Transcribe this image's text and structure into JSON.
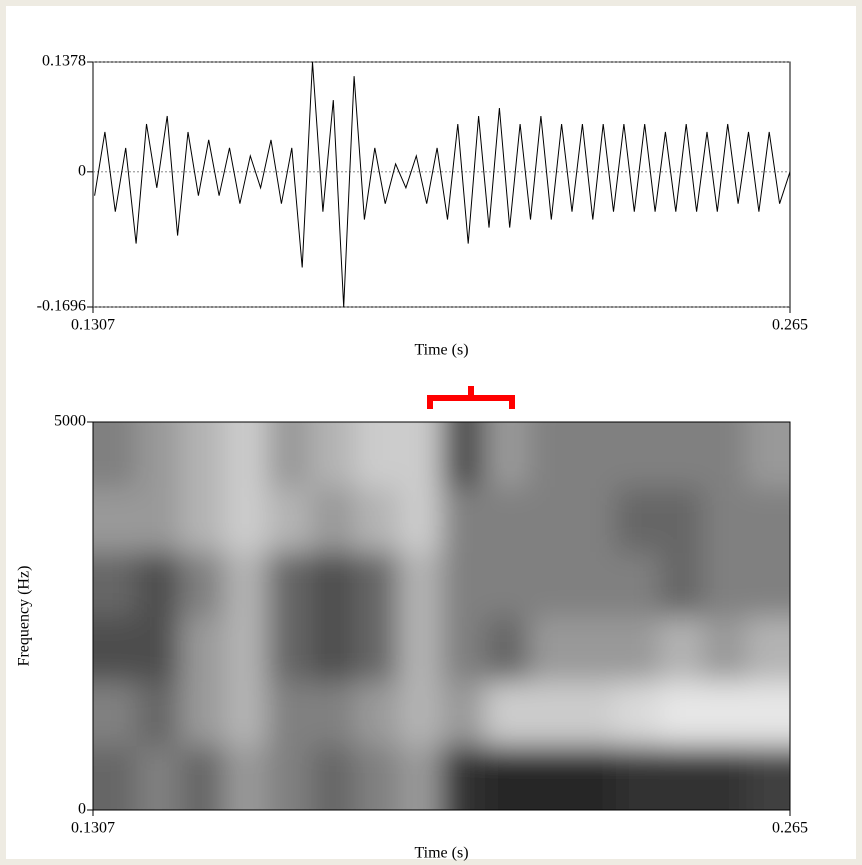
{
  "chart_data": [
    {
      "type": "line",
      "xlabel": "Time (s)",
      "x": [
        0.131,
        0.133,
        0.135,
        0.137,
        0.139,
        0.141,
        0.143,
        0.145,
        0.147,
        0.149,
        0.151,
        0.153,
        0.155,
        0.157,
        0.159,
        0.161,
        0.163,
        0.165,
        0.167,
        0.169,
        0.171,
        0.173,
        0.175,
        0.177,
        0.179,
        0.181,
        0.183,
        0.185,
        0.187,
        0.189,
        0.191,
        0.193,
        0.195,
        0.197,
        0.199,
        0.201,
        0.203,
        0.205,
        0.207,
        0.209,
        0.211,
        0.213,
        0.215,
        0.217,
        0.219,
        0.221,
        0.223,
        0.225,
        0.227,
        0.229,
        0.231,
        0.233,
        0.235,
        0.237,
        0.239,
        0.241,
        0.243,
        0.245,
        0.247,
        0.249,
        0.251,
        0.253,
        0.255,
        0.257,
        0.259,
        0.261,
        0.263,
        0.265
      ],
      "values": [
        -0.03,
        0.05,
        -0.05,
        0.03,
        -0.09,
        0.06,
        -0.02,
        0.07,
        -0.08,
        0.05,
        -0.03,
        0.04,
        -0.03,
        0.03,
        -0.04,
        0.02,
        -0.02,
        0.04,
        -0.04,
        0.03,
        -0.12,
        0.1378,
        -0.05,
        0.09,
        -0.1696,
        0.12,
        -0.06,
        0.03,
        -0.04,
        0.01,
        -0.02,
        0.02,
        -0.04,
        0.03,
        -0.06,
        0.06,
        -0.09,
        0.07,
        -0.07,
        0.08,
        -0.07,
        0.06,
        -0.06,
        0.07,
        -0.06,
        0.06,
        -0.05,
        0.06,
        -0.06,
        0.06,
        -0.05,
        0.06,
        -0.05,
        0.06,
        -0.05,
        0.05,
        -0.05,
        0.06,
        -0.05,
        0.05,
        -0.05,
        0.06,
        -0.04,
        0.05,
        -0.05,
        0.05,
        -0.04,
        0.0
      ],
      "color": "#000000",
      "xlim": [
        0.1307,
        0.265
      ],
      "xticks": [
        0.1307,
        0.265
      ],
      "ylim": [
        -0.1696,
        0.1378
      ],
      "yticks": [
        -0.1696,
        0,
        0.1378
      ],
      "grid": true
    },
    {
      "type": "spectrogram",
      "xlabel": "Time (s)",
      "ylabel": "Frequency (Hz)",
      "values": [
        [
          0.6,
          0.5,
          0.6,
          0.4,
          0.5,
          0.6,
          0.5,
          0.4,
          0.8,
          0.85,
          0.85,
          0.85,
          0.8,
          0.8,
          0.8,
          0.75
        ],
        [
          0.5,
          0.6,
          0.4,
          0.3,
          0.5,
          0.5,
          0.4,
          0.3,
          0.4,
          0.2,
          0.2,
          0.2,
          0.15,
          0.1,
          0.1,
          0.1
        ],
        [
          0.7,
          0.7,
          0.4,
          0.3,
          0.6,
          0.7,
          0.6,
          0.3,
          0.5,
          0.6,
          0.4,
          0.4,
          0.4,
          0.3,
          0.4,
          0.3
        ],
        [
          0.6,
          0.7,
          0.5,
          0.3,
          0.6,
          0.7,
          0.6,
          0.3,
          0.5,
          0.5,
          0.5,
          0.5,
          0.5,
          0.6,
          0.5,
          0.5
        ],
        [
          0.4,
          0.4,
          0.3,
          0.2,
          0.3,
          0.4,
          0.3,
          0.2,
          0.5,
          0.5,
          0.5,
          0.5,
          0.6,
          0.6,
          0.5,
          0.5
        ],
        [
          0.5,
          0.4,
          0.3,
          0.2,
          0.4,
          0.3,
          0.2,
          0.2,
          0.7,
          0.4,
          0.5,
          0.5,
          0.5,
          0.5,
          0.5,
          0.4
        ]
      ],
      "xlim": [
        0.1307,
        0.265
      ],
      "xticks": [
        0.1307,
        0.265
      ],
      "ylim": [
        0,
        5000
      ],
      "yticks": [
        0,
        5000
      ]
    }
  ]
}
